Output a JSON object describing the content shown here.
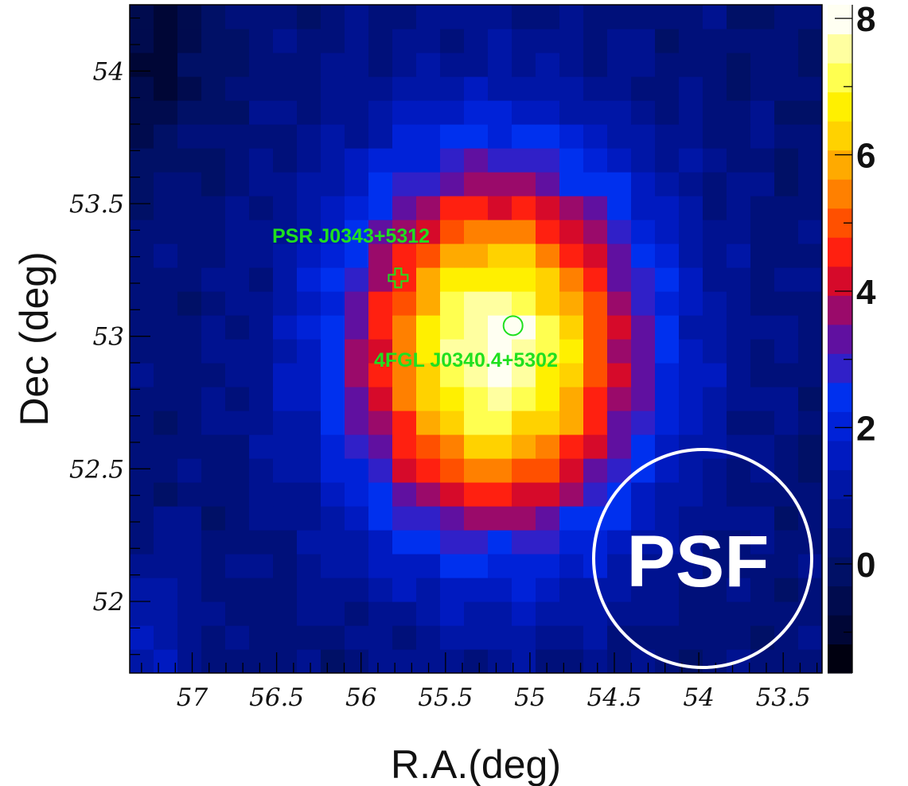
{
  "chart_data": {
    "type": "heatmap",
    "xlabel": "R.A.(deg)",
    "ylabel": "Dec (deg)",
    "x_ticks": [
      "57",
      "56.5",
      "56",
      "55.5",
      "55",
      "54.5",
      "54",
      "53.5"
    ],
    "x_tick_values": [
      57,
      56.5,
      56,
      55.5,
      55,
      54.5,
      54,
      53.5
    ],
    "y_ticks": [
      "54",
      "53.5",
      "53",
      "52.5",
      "52"
    ],
    "y_tick_values": [
      54,
      53.5,
      53,
      52.5,
      52
    ],
    "xlim": [
      57.37,
      53.27
    ],
    "ylim": [
      51.73,
      54.25
    ],
    "x_reversed": true,
    "colorbar": {
      "ticks": [
        "8",
        "6",
        "4",
        "2",
        "0"
      ],
      "tick_values": [
        8,
        6,
        4,
        2,
        0
      ],
      "range": [
        -1.6,
        8.2
      ],
      "colors": [
        "#000010",
        "#000636",
        "#000b4e",
        "#001066",
        "#00107a",
        "#001290",
        "#0016a6",
        "#001ac0",
        "#0022d8",
        "#0030ee",
        "#3020c8",
        "#6010a0",
        "#9a0a6a",
        "#d60a2a",
        "#ff2010",
        "#ff5000",
        "#ff8000",
        "#ffaa00",
        "#ffd200",
        "#fff000",
        "#ffff50",
        "#ffffa0",
        "#fffff2"
      ]
    },
    "peak": {
      "ra": 55.2,
      "dec": 52.95,
      "value": 8.0
    },
    "sources": [
      {
        "label": "PSR J0343+5312",
        "ra": 55.78,
        "dec": 53.22,
        "marker": "cross"
      },
      {
        "label": "4FGL J0340.4+5302",
        "ra": 55.1,
        "dec": 53.04,
        "marker": "circle"
      }
    ],
    "grid": false
  },
  "annotation": {
    "text": "PSF"
  },
  "colors": {
    "source_marker": "#1fe01f",
    "psf_circle": "#ffffff"
  }
}
